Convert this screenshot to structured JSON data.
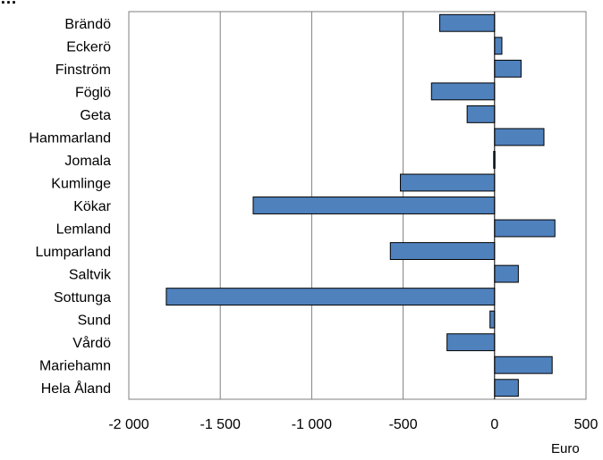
{
  "chart_data": {
    "type": "bar",
    "orientation": "horizontal",
    "title": "…",
    "unit_label": "Euro",
    "categories": [
      "Brändö",
      "Eckerö",
      "Finström",
      "Föglö",
      "Geta",
      "Hammarland",
      "Jomala",
      "Kumlinge",
      "Kökar",
      "Lemland",
      "Lumparland",
      "Saltvik",
      "Sottunga",
      "Sund",
      "Vårdö",
      "Mariehamn",
      "Hela Åland"
    ],
    "values": [
      -300,
      40,
      145,
      -345,
      -150,
      270,
      -5,
      -515,
      -1320,
      330,
      -570,
      130,
      -1795,
      -25,
      -260,
      315,
      130
    ],
    "xlim": [
      -2000,
      500
    ],
    "xticks": [
      -2000,
      -1500,
      -1000,
      -500,
      0,
      500
    ],
    "xtick_labels": [
      "-2 000",
      "-1 500",
      "-1 000",
      "-500",
      "0",
      "500"
    ],
    "bar_color": "#4f81bd",
    "grid": "vertical"
  }
}
